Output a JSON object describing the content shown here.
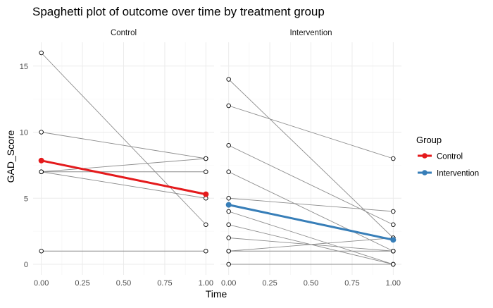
{
  "chart_data": {
    "type": "line",
    "title": "Spaghetti plot of outcome over time by treatment group",
    "xlabel": "Time",
    "ylabel": "GAD_Score",
    "xlim": [
      -0.05,
      1.05
    ],
    "ylim": [
      -0.8,
      16.8
    ],
    "x_ticks": [
      "0.00",
      "0.25",
      "0.50",
      "0.75",
      "1.00"
    ],
    "x_tick_values": [
      0,
      0.25,
      0.5,
      0.75,
      1
    ],
    "y_ticks": [
      "0",
      "5",
      "10",
      "15"
    ],
    "y_tick_values": [
      0,
      5,
      10,
      15
    ],
    "grid": true,
    "legend": {
      "title": "Group",
      "position": "right",
      "entries": [
        {
          "label": "Control",
          "color": "#E41A1C"
        },
        {
          "label": "Intervention",
          "color": "#377EB8"
        }
      ]
    },
    "panels": [
      {
        "strip": "Control",
        "individual_lines": [
          {
            "x": [
              0,
              1
            ],
            "y": [
              16,
              3
            ]
          },
          {
            "x": [
              0,
              1
            ],
            "y": [
              10,
              8
            ]
          },
          {
            "x": [
              0,
              1
            ],
            "y": [
              7,
              8
            ]
          },
          {
            "x": [
              0,
              1
            ],
            "y": [
              7,
              7
            ]
          },
          {
            "x": [
              0,
              1
            ],
            "y": [
              7,
              5
            ]
          },
          {
            "x": [
              0,
              1
            ],
            "y": [
              1,
              1
            ]
          }
        ],
        "mean_series": {
          "name": "Control",
          "color": "#E41A1C",
          "x": [
            0,
            1
          ],
          "y": [
            7.85,
            5.3
          ]
        }
      },
      {
        "strip": "Intervention",
        "individual_lines": [
          {
            "x": [
              0,
              1
            ],
            "y": [
              14,
              2
            ]
          },
          {
            "x": [
              0,
              1
            ],
            "y": [
              12,
              8
            ]
          },
          {
            "x": [
              0,
              1
            ],
            "y": [
              9,
              3
            ]
          },
          {
            "x": [
              0,
              1
            ],
            "y": [
              7,
              1
            ]
          },
          {
            "x": [
              0,
              1
            ],
            "y": [
              5,
              4
            ]
          },
          {
            "x": [
              0,
              1
            ],
            "y": [
              4,
              0
            ]
          },
          {
            "x": [
              0,
              1
            ],
            "y": [
              3,
              0
            ]
          },
          {
            "x": [
              0,
              1
            ],
            "y": [
              2,
              1
            ]
          },
          {
            "x": [
              0,
              1
            ],
            "y": [
              1,
              2
            ]
          },
          {
            "x": [
              0,
              1
            ],
            "y": [
              1,
              1
            ]
          },
          {
            "x": [
              0,
              1
            ],
            "y": [
              0,
              0
            ]
          }
        ],
        "mean_series": {
          "name": "Intervention",
          "color": "#377EB8",
          "x": [
            0,
            1
          ],
          "y": [
            4.5,
            1.85
          ]
        }
      }
    ]
  }
}
